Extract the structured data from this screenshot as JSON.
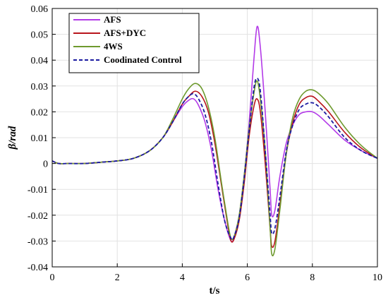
{
  "chart_data": {
    "type": "line",
    "xlabel": "t/s",
    "ylabel": "β/rad",
    "xlim": [
      0,
      10
    ],
    "ylim": [
      -0.04,
      0.06
    ],
    "xticks": [
      0,
      2,
      4,
      6,
      8,
      10
    ],
    "yticks": [
      -0.04,
      -0.03,
      -0.02,
      -0.01,
      0,
      0.01,
      0.02,
      0.03,
      0.04,
      0.05,
      0.06
    ],
    "xtick_labels": [
      "0",
      "2",
      "4",
      "6",
      "8",
      "10"
    ],
    "ytick_labels": [
      "-0.04",
      "-0.03",
      "-0.02",
      "-0.01",
      "0",
      "0.01",
      "0.02",
      "0.03",
      "0.04",
      "0.05",
      "0.06"
    ],
    "grid": true,
    "legend_position": "top-left",
    "series": [
      {
        "name": "AFS",
        "color": "#b33ae8",
        "dash": "solid",
        "x": [
          0,
          0.2,
          0.5,
          1.0,
          1.5,
          2.0,
          2.5,
          3.0,
          3.4,
          3.7,
          4.0,
          4.2,
          4.35,
          4.5,
          4.7,
          4.9,
          5.1,
          5.3,
          5.5,
          5.6,
          5.75,
          5.9,
          6.05,
          6.2,
          6.3,
          6.4,
          6.55,
          6.7,
          6.75,
          6.85,
          7.0,
          7.2,
          7.4,
          7.6,
          7.8,
          8.0,
          8.2,
          8.5,
          9.0,
          9.5,
          10.0
        ],
        "y": [
          0.001,
          0.0,
          0.0,
          0.0,
          0.0005,
          0.001,
          0.002,
          0.005,
          0.01,
          0.016,
          0.022,
          0.0245,
          0.025,
          0.0225,
          0.016,
          0.005,
          -0.01,
          -0.022,
          -0.03,
          -0.028,
          -0.02,
          -0.005,
          0.015,
          0.04,
          0.053,
          0.045,
          0.02,
          -0.01,
          -0.02,
          -0.018,
          -0.005,
          0.008,
          0.015,
          0.019,
          0.02,
          0.02,
          0.0185,
          0.015,
          0.009,
          0.005,
          0.002
        ]
      },
      {
        "name": "AFS+DYC",
        "color": "#b8151c",
        "dash": "solid",
        "x": [
          0,
          0.2,
          0.5,
          1.0,
          1.5,
          2.0,
          2.5,
          3.0,
          3.4,
          3.7,
          4.0,
          4.2,
          4.4,
          4.6,
          4.8,
          5.0,
          5.2,
          5.4,
          5.5,
          5.6,
          5.75,
          5.9,
          6.05,
          6.2,
          6.3,
          6.4,
          6.55,
          6.7,
          6.75,
          6.85,
          7.0,
          7.2,
          7.4,
          7.6,
          7.8,
          8.0,
          8.2,
          8.5,
          9.0,
          9.5,
          10.0
        ],
        "y": [
          0.001,
          0.0,
          0.0,
          0.0,
          0.0005,
          0.001,
          0.002,
          0.005,
          0.01,
          0.016,
          0.023,
          0.026,
          0.028,
          0.026,
          0.02,
          0.008,
          -0.008,
          -0.024,
          -0.03,
          -0.029,
          -0.022,
          -0.008,
          0.01,
          0.022,
          0.025,
          0.02,
          0.0,
          -0.025,
          -0.032,
          -0.03,
          -0.016,
          0.004,
          0.016,
          0.023,
          0.0255,
          0.026,
          0.024,
          0.02,
          0.012,
          0.006,
          0.002
        ]
      },
      {
        "name": "4WS",
        "color": "#6e9a2e",
        "dash": "solid",
        "x": [
          0,
          0.2,
          0.5,
          1.0,
          1.5,
          2.0,
          2.5,
          3.0,
          3.4,
          3.7,
          4.0,
          4.2,
          4.4,
          4.6,
          4.8,
          5.0,
          5.2,
          5.4,
          5.5,
          5.6,
          5.75,
          5.9,
          6.05,
          6.2,
          6.3,
          6.4,
          6.55,
          6.7,
          6.75,
          6.85,
          7.0,
          7.2,
          7.4,
          7.6,
          7.8,
          8.0,
          8.2,
          8.5,
          9.0,
          9.5,
          10.0
        ],
        "y": [
          0.001,
          0.0,
          0.0,
          0.0,
          0.0005,
          0.001,
          0.002,
          0.005,
          0.01,
          0.017,
          0.025,
          0.029,
          0.031,
          0.029,
          0.022,
          0.01,
          -0.007,
          -0.023,
          -0.029,
          -0.028,
          -0.02,
          -0.005,
          0.013,
          0.027,
          0.032,
          0.025,
          0.005,
          -0.025,
          -0.035,
          -0.033,
          -0.018,
          0.004,
          0.018,
          0.025,
          0.028,
          0.0285,
          0.027,
          0.023,
          0.014,
          0.007,
          0.002
        ]
      },
      {
        "name": "Coodinated Control",
        "color": "#1a1aa0",
        "dash": "dashed",
        "x": [
          0,
          0.2,
          0.5,
          1.0,
          1.5,
          2.0,
          2.5,
          3.0,
          3.4,
          3.7,
          4.0,
          4.2,
          4.35,
          4.5,
          4.7,
          4.9,
          5.1,
          5.3,
          5.5,
          5.6,
          5.75,
          5.9,
          6.05,
          6.2,
          6.3,
          6.4,
          6.55,
          6.7,
          6.75,
          6.85,
          7.0,
          7.2,
          7.4,
          7.6,
          7.8,
          8.0,
          8.2,
          8.5,
          9.0,
          9.5,
          10.0
        ],
        "y": [
          0.001,
          0.0,
          0.0,
          0.0,
          0.0005,
          0.001,
          0.002,
          0.005,
          0.01,
          0.016,
          0.023,
          0.026,
          0.027,
          0.025,
          0.019,
          0.008,
          -0.008,
          -0.022,
          -0.029,
          -0.028,
          -0.021,
          -0.006,
          0.012,
          0.029,
          0.033,
          0.028,
          0.005,
          -0.02,
          -0.027,
          -0.025,
          -0.013,
          0.005,
          0.015,
          0.021,
          0.023,
          0.0235,
          0.022,
          0.018,
          0.01,
          0.005,
          0.002
        ]
      }
    ]
  }
}
